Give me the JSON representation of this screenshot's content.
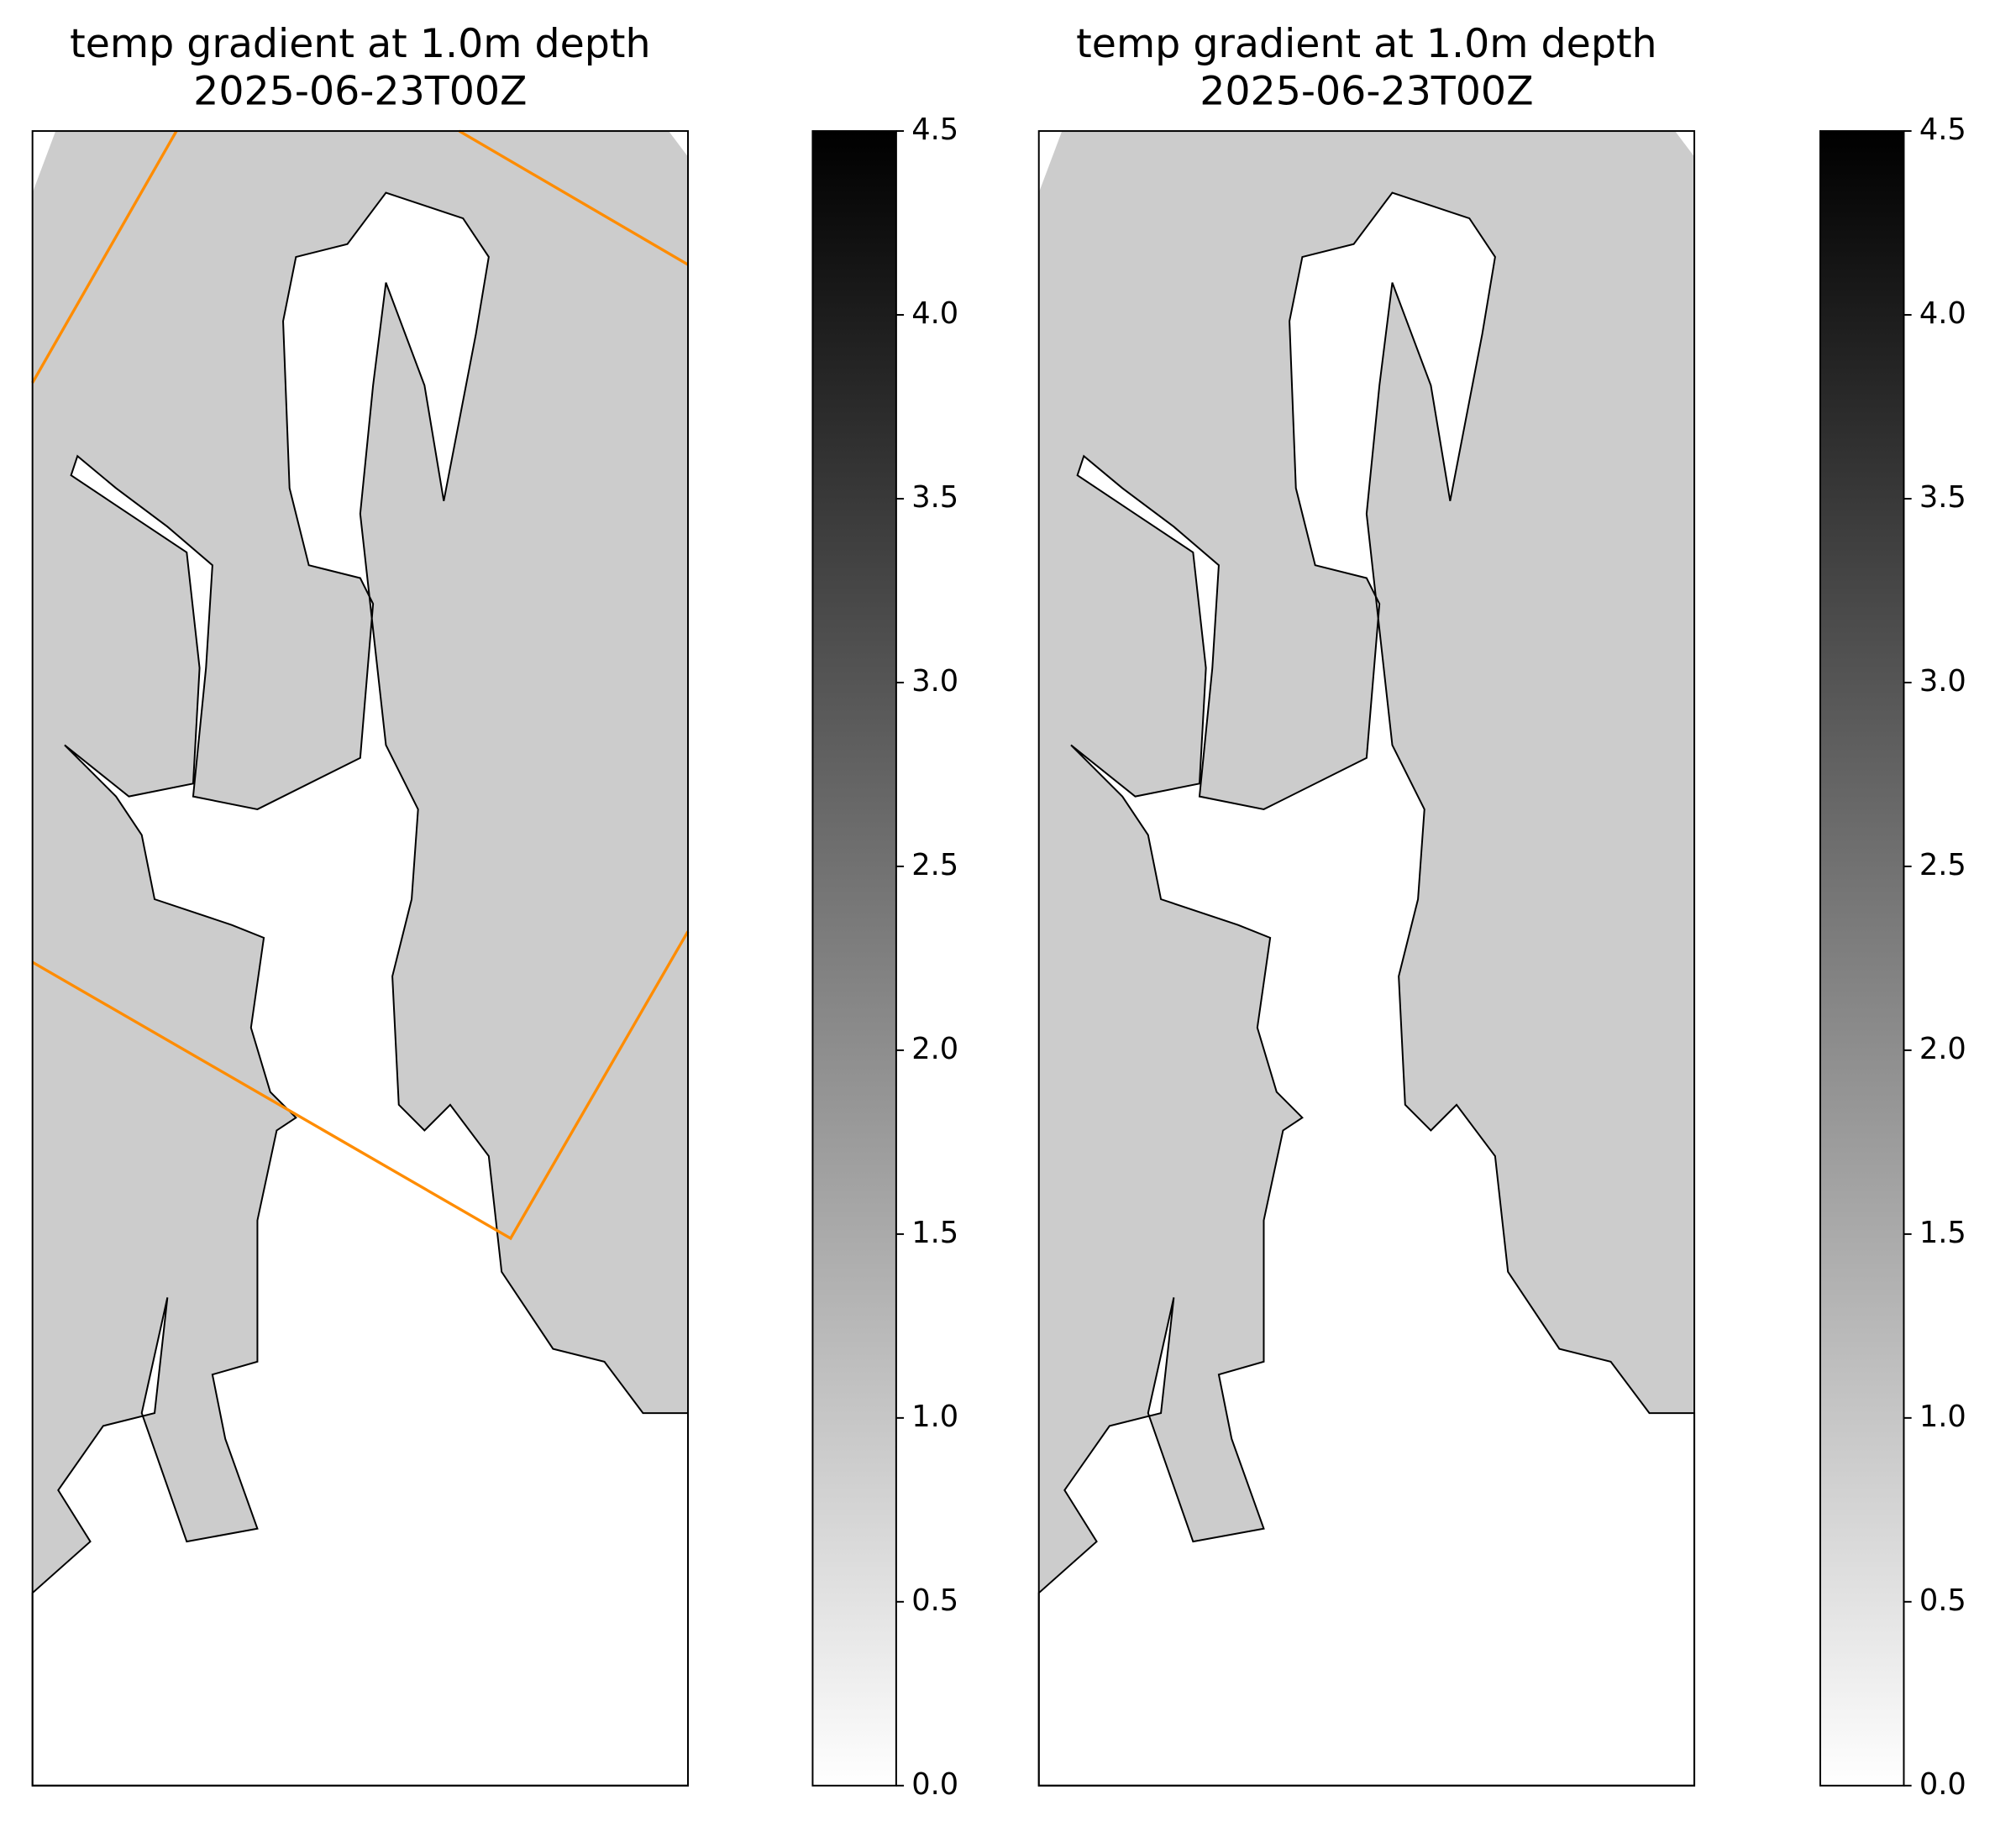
{
  "chart_data": [
    {
      "type": "map",
      "title": "temp gradient at 1.0m depth",
      "subtitle": "2025-06-23T00Z",
      "land_color": "#cccccc",
      "box_color": "#ff8c00",
      "colorbar": {
        "lim": [
          0,
          4.5
        ],
        "colors": [
          "#ffffff",
          "#000000"
        ],
        "ticks": [
          {
            "value": 0,
            "label": "0.0"
          },
          0.5,
          {
            "value": 1,
            "label": "1.0"
          },
          1.5,
          {
            "value": 2,
            "label": "2.0"
          },
          2.5,
          {
            "value": 3,
            "label": "3.0"
          },
          3.5,
          {
            "value": 4,
            "label": "4.0"
          },
          4.5
        ]
      }
    },
    {
      "type": "map",
      "title": "temp gradient at 1.0m depth",
      "subtitle": "2025-06-23T00Z",
      "land_color": "#cccccc",
      "colorbar": {
        "lim": [
          0,
          4.5
        ],
        "colors": [
          "#ffffff",
          "#000000"
        ],
        "ticks": [
          {
            "value": 0,
            "label": "0.0"
          },
          0.5,
          {
            "value": 1,
            "label": "1.0"
          },
          1.5,
          {
            "value": 2,
            "label": "2.0"
          },
          2.5,
          {
            "value": 3,
            "label": "3.0"
          },
          3.5,
          {
            "value": 4,
            "label": "4.0"
          },
          4.5
        ]
      }
    }
  ]
}
